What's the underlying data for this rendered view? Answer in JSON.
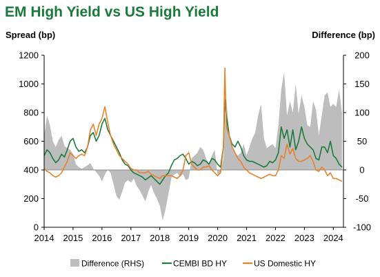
{
  "title": "EM High Yield vs US High Yield",
  "chart_data": {
    "type": "line",
    "title": "EM High Yield vs US High Yield",
    "ylabel_left": "Spread (bp)",
    "ylabel_right": "Difference (bp)",
    "ylim_left": [
      0,
      1200
    ],
    "ylim_right": [
      -100,
      200
    ],
    "yticks_left": [
      "0",
      "200",
      "400",
      "600",
      "800",
      "1000",
      "1200"
    ],
    "yticks_right": [
      "-100",
      "-50",
      "0",
      "50",
      "100",
      "150",
      "200"
    ],
    "xlim": [
      2014.0,
      2024.35
    ],
    "xticks": [
      "2014",
      "2015",
      "2016",
      "2017",
      "2018",
      "2019",
      "2020",
      "2021",
      "2022",
      "2023",
      "2024"
    ],
    "legend_position": "bottom",
    "series": [
      {
        "name": "Difference (RHS)",
        "kind": "area",
        "axis": "right",
        "color": "#bdbdbd",
        "x": [
          2014.0,
          2014.1,
          2014.2,
          2014.3,
          2014.4,
          2014.5,
          2014.6,
          2014.7,
          2014.8,
          2014.9,
          2015.0,
          2015.1,
          2015.2,
          2015.3,
          2015.4,
          2015.5,
          2015.6,
          2015.7,
          2015.8,
          2015.9,
          2016.0,
          2016.1,
          2016.2,
          2016.3,
          2016.4,
          2016.5,
          2016.6,
          2016.7,
          2016.8,
          2016.9,
          2017.0,
          2017.1,
          2017.2,
          2017.3,
          2017.4,
          2017.5,
          2017.6,
          2017.7,
          2017.8,
          2017.9,
          2018.0,
          2018.1,
          2018.2,
          2018.3,
          2018.4,
          2018.5,
          2018.6,
          2018.7,
          2018.8,
          2018.9,
          2019.0,
          2019.1,
          2019.2,
          2019.3,
          2019.4,
          2019.5,
          2019.6,
          2019.7,
          2019.8,
          2019.9,
          2020.0,
          2020.1,
          2020.2,
          2020.3,
          2020.4,
          2020.5,
          2020.6,
          2020.7,
          2020.8,
          2020.9,
          2021.0,
          2021.1,
          2021.2,
          2021.3,
          2021.4,
          2021.5,
          2021.6,
          2021.7,
          2021.8,
          2021.9,
          2022.0,
          2022.1,
          2022.2,
          2022.3,
          2022.4,
          2022.5,
          2022.6,
          2022.7,
          2022.8,
          2022.9,
          2023.0,
          2023.1,
          2023.2,
          2023.3,
          2023.4,
          2023.5,
          2023.6,
          2023.7,
          2023.8,
          2023.9,
          2024.0,
          2024.1,
          2024.2,
          2024.3
        ],
        "values": [
          60,
          95,
          78,
          50,
          40,
          52,
          60,
          42,
          38,
          35,
          28,
          10,
          5,
          2,
          5,
          8,
          12,
          2,
          -4,
          -10,
          -20,
          -8,
          0,
          -5,
          -25,
          -45,
          -52,
          -38,
          -22,
          -18,
          -22,
          -15,
          -28,
          -35,
          -45,
          -55,
          -38,
          -26,
          -40,
          -50,
          -62,
          -88,
          -68,
          -42,
          -14,
          -8,
          -5,
          -12,
          -7,
          -18,
          -15,
          20,
          25,
          30,
          40,
          35,
          20,
          10,
          25,
          35,
          -10,
          -5,
          20,
          125,
          60,
          42,
          30,
          25,
          30,
          45,
          25,
          40,
          55,
          65,
          95,
          115,
          55,
          38,
          42,
          45,
          38,
          78,
          140,
          170,
          95,
          120,
          100,
          150,
          98,
          130,
          110,
          78,
          75,
          120,
          105,
          60,
          95,
          130,
          135,
          110,
          115,
          110,
          140,
          100
        ]
      },
      {
        "name": "CEMBI BD HY",
        "kind": "line",
        "axis": "left",
        "color": "#1a7a3a",
        "x": [
          2014.0,
          2014.1,
          2014.2,
          2014.3,
          2014.4,
          2014.5,
          2014.6,
          2014.7,
          2014.8,
          2014.9,
          2015.0,
          2015.1,
          2015.2,
          2015.3,
          2015.4,
          2015.5,
          2015.6,
          2015.7,
          2015.8,
          2015.9,
          2016.0,
          2016.1,
          2016.2,
          2016.3,
          2016.4,
          2016.5,
          2016.6,
          2016.7,
          2016.8,
          2016.9,
          2017.0,
          2017.1,
          2017.2,
          2017.3,
          2017.4,
          2017.5,
          2017.6,
          2017.7,
          2017.8,
          2017.9,
          2018.0,
          2018.1,
          2018.2,
          2018.3,
          2018.4,
          2018.5,
          2018.6,
          2018.7,
          2018.8,
          2018.9,
          2019.0,
          2019.1,
          2019.2,
          2019.3,
          2019.4,
          2019.5,
          2019.6,
          2019.7,
          2019.8,
          2019.9,
          2020.0,
          2020.1,
          2020.2,
          2020.25,
          2020.3,
          2020.4,
          2020.5,
          2020.6,
          2020.7,
          2020.8,
          2020.9,
          2021.0,
          2021.1,
          2021.2,
          2021.3,
          2021.4,
          2021.5,
          2021.6,
          2021.7,
          2021.8,
          2021.9,
          2022.0,
          2022.1,
          2022.2,
          2022.3,
          2022.4,
          2022.5,
          2022.6,
          2022.7,
          2022.8,
          2022.9,
          2023.0,
          2023.1,
          2023.2,
          2023.3,
          2023.4,
          2023.5,
          2023.6,
          2023.7,
          2023.8,
          2023.9,
          2024.0,
          2024.1,
          2024.2,
          2024.3
        ],
        "values": [
          500,
          540,
          520,
          480,
          450,
          470,
          510,
          490,
          540,
          600,
          620,
          560,
          530,
          540,
          520,
          560,
          640,
          660,
          600,
          640,
          720,
          760,
          680,
          640,
          600,
          560,
          520,
          470,
          440,
          430,
          400,
          380,
          370,
          360,
          350,
          330,
          345,
          360,
          340,
          320,
          300,
          330,
          360,
          380,
          430,
          470,
          480,
          500,
          510,
          480,
          440,
          460,
          450,
          430,
          440,
          470,
          460,
          440,
          480,
          470,
          440,
          420,
          560,
          890,
          780,
          640,
          580,
          560,
          600,
          560,
          500,
          470,
          460,
          460,
          450,
          440,
          430,
          420,
          430,
          460,
          450,
          470,
          520,
          700,
          620,
          680,
          560,
          680,
          540,
          600,
          700,
          620,
          580,
          560,
          540,
          480,
          470,
          560,
          560,
          520,
          600,
          500,
          480,
          440,
          420
        ]
      },
      {
        "name": "US Domestic HY",
        "kind": "line",
        "axis": "left",
        "color": "#e6822a",
        "x": [
          2014.0,
          2014.1,
          2014.2,
          2014.3,
          2014.4,
          2014.5,
          2014.6,
          2014.7,
          2014.8,
          2014.9,
          2015.0,
          2015.1,
          2015.2,
          2015.3,
          2015.4,
          2015.5,
          2015.6,
          2015.7,
          2015.8,
          2015.9,
          2016.0,
          2016.1,
          2016.2,
          2016.3,
          2016.4,
          2016.5,
          2016.6,
          2016.7,
          2016.8,
          2016.9,
          2017.0,
          2017.1,
          2017.2,
          2017.3,
          2017.4,
          2017.5,
          2017.6,
          2017.7,
          2017.8,
          2017.9,
          2018.0,
          2018.1,
          2018.2,
          2018.3,
          2018.4,
          2018.5,
          2018.6,
          2018.7,
          2018.8,
          2018.9,
          2019.0,
          2019.1,
          2019.2,
          2019.3,
          2019.4,
          2019.5,
          2019.6,
          2019.7,
          2019.8,
          2019.9,
          2020.0,
          2020.1,
          2020.2,
          2020.25,
          2020.3,
          2020.4,
          2020.5,
          2020.6,
          2020.7,
          2020.8,
          2020.9,
          2021.0,
          2021.1,
          2021.2,
          2021.3,
          2021.4,
          2021.5,
          2021.6,
          2021.7,
          2021.8,
          2021.9,
          2022.0,
          2022.1,
          2022.2,
          2022.3,
          2022.4,
          2022.5,
          2022.6,
          2022.7,
          2022.8,
          2022.9,
          2023.0,
          2023.1,
          2023.2,
          2023.3,
          2023.4,
          2023.5,
          2023.6,
          2023.7,
          2023.8,
          2023.9,
          2024.0,
          2024.1,
          2024.2,
          2024.3
        ],
        "values": [
          410,
          390,
          380,
          360,
          350,
          360,
          380,
          420,
          460,
          520,
          500,
          480,
          500,
          510,
          500,
          560,
          680,
          720,
          640,
          720,
          760,
          840,
          730,
          640,
          580,
          540,
          500,
          480,
          460,
          440,
          410,
          400,
          400,
          380,
          380,
          380,
          390,
          370,
          360,
          350,
          340,
          360,
          360,
          360,
          360,
          350,
          340,
          360,
          400,
          500,
          520,
          440,
          420,
          400,
          400,
          420,
          420,
          430,
          400,
          380,
          360,
          380,
          560,
          1110,
          700,
          640,
          560,
          520,
          480,
          460,
          420,
          400,
          380,
          370,
          360,
          350,
          340,
          350,
          360,
          370,
          360,
          360,
          400,
          500,
          480,
          580,
          510,
          550,
          480,
          460,
          460,
          470,
          480,
          500,
          460,
          400,
          390,
          420,
          400,
          360,
          380,
          340,
          340,
          330,
          320
        ]
      }
    ]
  }
}
